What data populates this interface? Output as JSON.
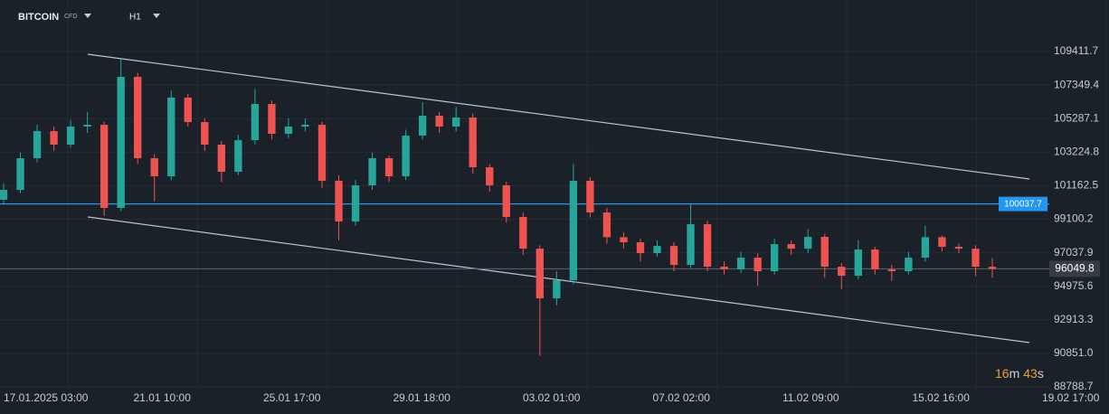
{
  "header": {
    "symbol": "BITCOIN",
    "kind": "CFD",
    "timeframe": "H1"
  },
  "timer": {
    "minutes": "16",
    "minutes_unit": "m",
    "seconds": "43",
    "seconds_unit": "s"
  },
  "chart_data": {
    "type": "candlestick",
    "up_color": "#26a69a",
    "down_color": "#ef5350",
    "open": [
      100300,
      100904,
      102850,
      104518,
      103684,
      104796,
      104907,
      99792,
      107854,
      102850,
      101738,
      106575,
      105074,
      103684,
      102016,
      103962,
      106186,
      104351,
      104796,
      104907,
      101460,
      98958,
      101182,
      102850,
      101738,
      104240,
      105463,
      104796,
      105352,
      102294,
      101182,
      99236,
      97290,
      94232,
      95344,
      101460,
      99514,
      97993,
      97679,
      97012,
      97457,
      96289,
      98791,
      96178,
      96011,
      96734,
      95900,
      97568,
      97290,
      98013,
      96178,
      95622,
      97234,
      96011,
      95900,
      96734,
      97993,
      97401,
      97290,
      96178
    ],
    "high": [
      101300,
      103200,
      104900,
      104800,
      105200,
      105700,
      105100,
      108970,
      108100,
      103100,
      107000,
      106800,
      105300,
      103900,
      104300,
      107100,
      106400,
      105300,
      105300,
      105100,
      101800,
      101500,
      103200,
      103000,
      104600,
      106300,
      105700,
      106000,
      105600,
      102500,
      101400,
      99500,
      97500,
      95900,
      102500,
      101700,
      99800,
      98300,
      97900,
      97800,
      97700,
      100037,
      99000,
      96500,
      97100,
      97000,
      97900,
      97800,
      98500,
      98200,
      96400,
      97800,
      97400,
      96300,
      97100,
      98700,
      98100,
      97600,
      97500,
      96700
    ],
    "low": [
      100000,
      100700,
      102600,
      103300,
      103500,
      104400,
      99300,
      99600,
      102500,
      100200,
      101500,
      104800,
      103300,
      101400,
      101800,
      103700,
      104000,
      104100,
      104500,
      101000,
      97800,
      98700,
      100900,
      101400,
      101500,
      104000,
      104400,
      104500,
      101900,
      100800,
      98900,
      96900,
      90700,
      93800,
      95100,
      99200,
      97600,
      97300,
      96500,
      96800,
      95900,
      96100,
      95900,
      95700,
      95800,
      95000,
      95700,
      96900,
      97000,
      95500,
      94800,
      95400,
      95700,
      95300,
      95700,
      96500,
      97100,
      97000,
      95600,
      95500
    ],
    "close": [
      100904,
      102850,
      104518,
      103684,
      104796,
      104907,
      99792,
      107854,
      102850,
      101738,
      106575,
      105074,
      103684,
      102016,
      103962,
      106186,
      104351,
      104796,
      104907,
      101460,
      98958,
      101182,
      102850,
      101738,
      104240,
      105463,
      104796,
      105352,
      102294,
      101182,
      99236,
      97290,
      94232,
      95344,
      101460,
      99514,
      97993,
      97679,
      97012,
      97457,
      96289,
      98791,
      96178,
      96011,
      96734,
      95900,
      97568,
      97290,
      98013,
      96178,
      95622,
      97234,
      96011,
      95900,
      96734,
      97993,
      97401,
      97290,
      96178,
      96049.8
    ],
    "x_labels": [
      "17.01.2025  03:00",
      "21.01  10:00",
      "25.01  17:00",
      "29.01  18:00",
      "03.02  01:00",
      "07.02  02:00",
      "11.02  09:00",
      "15.02  16:00",
      "19.02  17:00"
    ],
    "ylim": [
      88677,
      112580
    ],
    "yticks": [
      109411.7,
      107349.4,
      105287.1,
      103224.8,
      101162.5,
      99100.2,
      97037.9,
      94975.6,
      92913.3,
      {
        "value": 90851,
        "label": "90851.0"
      },
      88788.7
    ],
    "grid": true,
    "level": {
      "value": 100037.7,
      "color": "#2196f3"
    },
    "current_price": {
      "value": 96049.8,
      "color": "#5d6673"
    },
    "trendlines": [
      {
        "start": 109245,
        "end": 101574,
        "color": "#b9c4d6"
      },
      {
        "start": 99239,
        "end": 91513,
        "color": "#b9c4d6"
      }
    ]
  }
}
